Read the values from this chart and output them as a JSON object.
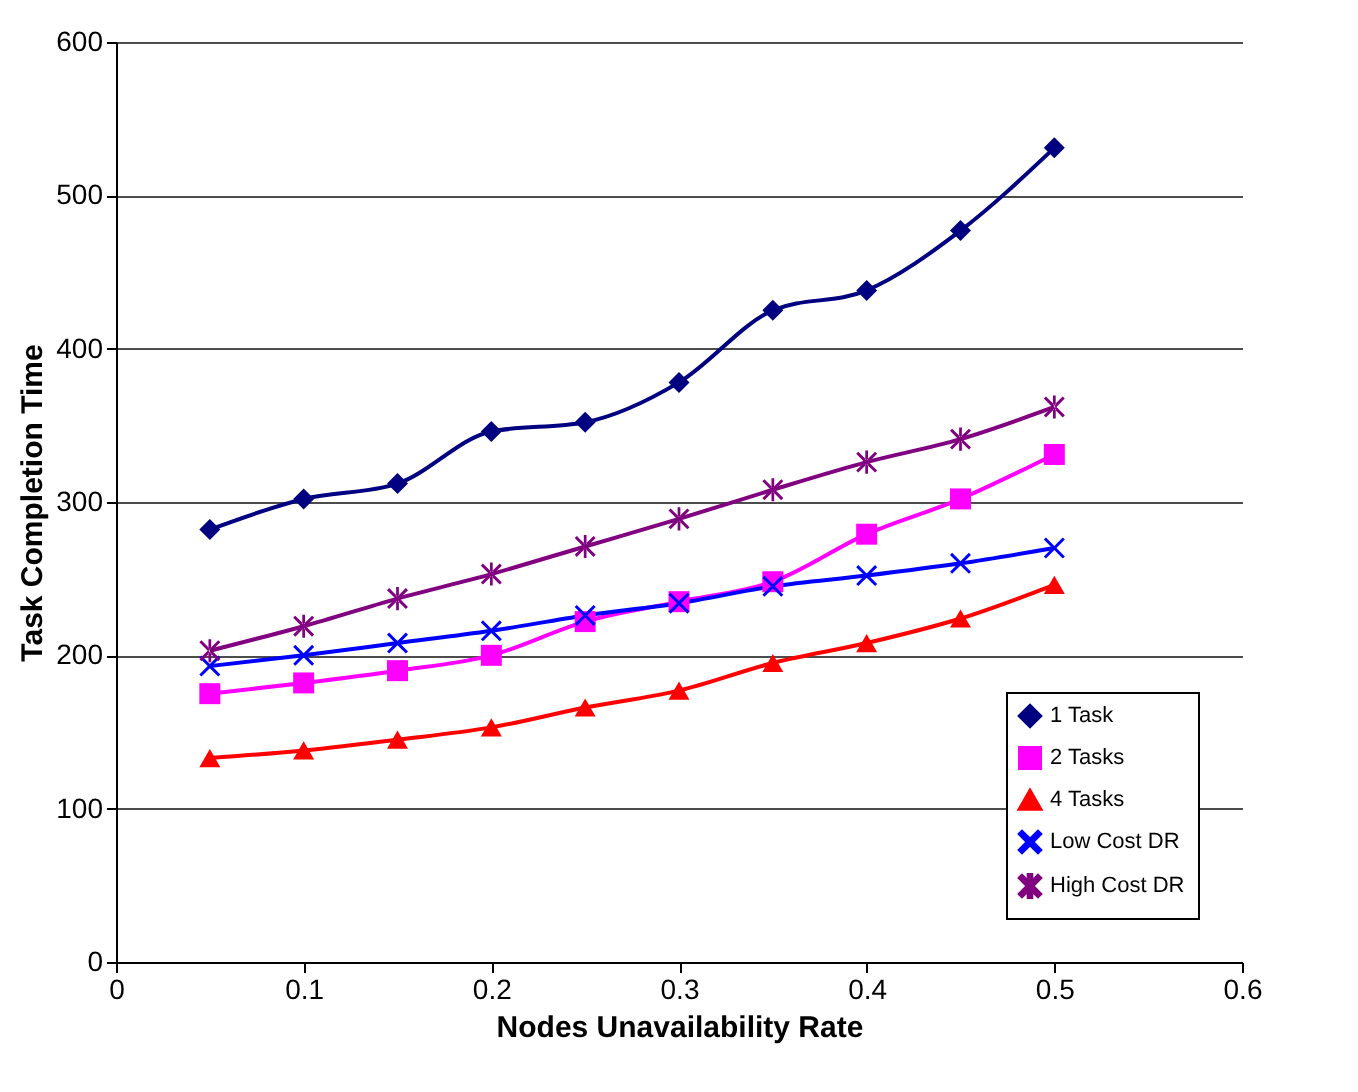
{
  "chart_data": {
    "type": "line",
    "xlabel": "Nodes Unavailability Rate",
    "ylabel": "Task Completion Time",
    "x": [
      0.05,
      0.1,
      0.15,
      0.2,
      0.25,
      0.3,
      0.35,
      0.4,
      0.45,
      0.5
    ],
    "series": [
      {
        "name": "1 Task",
        "color": "#000080",
        "marker": "diamond",
        "values": [
          282,
          302,
          312,
          346,
          352,
          378,
          425,
          438,
          477,
          531
        ]
      },
      {
        "name": "2 Tasks",
        "color": "#ff00ff",
        "marker": "square",
        "values": [
          175,
          182,
          190,
          200,
          222,
          235,
          248,
          279,
          302,
          331
        ]
      },
      {
        "name": "4 Tasks",
        "color": "#ff0000",
        "marker": "triangle",
        "values": [
          133,
          138,
          145,
          153,
          166,
          177,
          195,
          208,
          224,
          246
        ]
      },
      {
        "name": "Low Cost DR",
        "color": "#0000ff",
        "marker": "cross",
        "values": [
          193,
          200,
          208,
          216,
          226,
          234,
          245,
          252,
          260,
          270
        ]
      },
      {
        "name": "High Cost DR",
        "color": "#800080",
        "marker": "star",
        "values": [
          203,
          219,
          237,
          253,
          271,
          289,
          308,
          326,
          341,
          362
        ]
      }
    ],
    "xlim": [
      0,
      0.6
    ],
    "xticks": [
      0,
      0.1,
      0.2,
      0.3,
      0.4,
      0.5,
      0.6
    ],
    "ylim": [
      0,
      600
    ],
    "yticks": [
      0,
      100,
      200,
      300,
      400,
      500,
      600
    ],
    "grid": "y",
    "legend": "bottom right"
  }
}
